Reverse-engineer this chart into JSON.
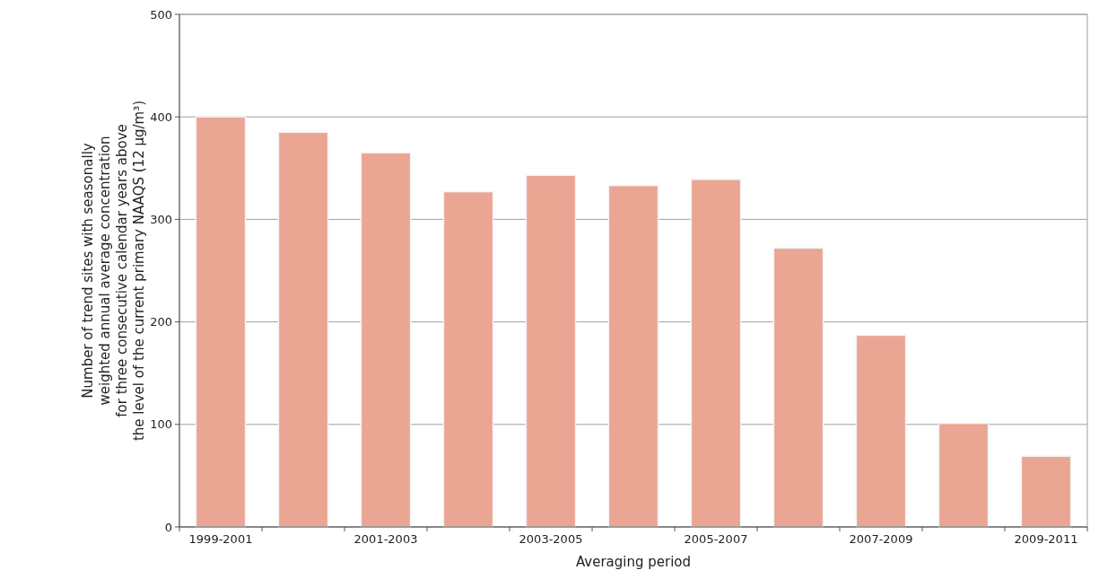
{
  "chart_data": {
    "type": "bar",
    "categories": [
      "1999-2001",
      null,
      "2001-2003",
      null,
      "2003-2005",
      null,
      "2005-2007",
      null,
      "2007-2009",
      null,
      "2009-2011"
    ],
    "values": [
      400,
      385,
      365,
      327,
      343,
      333,
      339,
      272,
      187,
      101,
      69
    ],
    "color": "#eba593",
    "xlabel": "Averaging period",
    "ylabel": "Number of trend sites with seasonally\nweighted annual average concentration\nfor three consecutive calendar years above\nthe level of the current primary NAAQS (12 µg/m³)",
    "ylim": [
      0,
      500
    ],
    "yticks": [
      0,
      100,
      200,
      300,
      400,
      500
    ],
    "grid": "y"
  }
}
